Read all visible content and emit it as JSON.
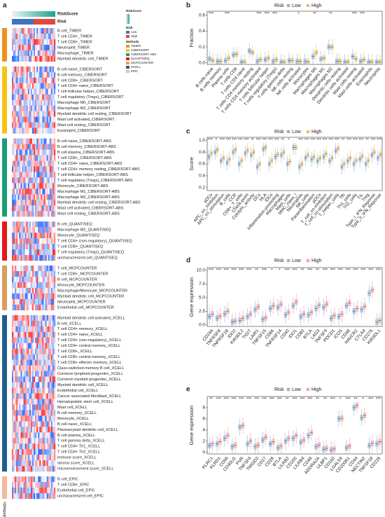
{
  "heatmap": {
    "panel_label": "a",
    "riskscore_label": "RiskScore",
    "risk_label": "Risk",
    "risk_low": "Low",
    "risk_high": "High",
    "methods_label": "Methods",
    "groups": [
      {
        "method": "TIMER",
        "color": "#f0901e",
        "rows": [
          "B cell_TIMER",
          "T cell CD4+_TIMER",
          "T cell CD8+_TIMER",
          "Neutrophil_TIMER",
          "Macrophage_TIMER",
          "Myeloid dendritic cell_TIMER"
        ]
      },
      {
        "method": "CIBERSORT",
        "color": "#f5c518",
        "rows": [
          "B cell naive_CIBERSORT",
          "B cell memory_CIBERSORT",
          "T cell CD8+_CIBERSORT",
          "T cell CD4+ naive_CIBERSORT",
          "T cell follicular helper_CIBERSORT",
          "T cell regulatory (Tregs)_CIBERSORT",
          "Macrophage M0_CIBERSORT",
          "Macrophage M2_CIBERSORT",
          "Myeloid dendritic cell resting_CIBERSORT",
          "Mast cell activated_CIBERSORT",
          "Mast cell resting_CIBERSORT",
          "Eosinophil_CIBERSORT"
        ]
      },
      {
        "method": "CIBERSORT-ABS",
        "color": "#1a9e77",
        "rows": [
          "B cell naive_CIBERSORT-ABS",
          "B cell memory_CIBERSORT-ABS",
          "B cell plasma_CIBERSORT-ABS",
          "T cell CD8+_CIBERSORT-ABS",
          "T cell CD4+ naive_CIBERSORT-ABS",
          "T cell CD4+ memory resting_CIBERSORT-ABS",
          "T cell follicular helper_CIBERSORT-ABS",
          "T cell regulatory (Tregs)_CIBERSORT-ABS",
          "Monocyte_CIBERSORT-ABS",
          "Macrophage M1_CIBERSORT-ABS",
          "Macrophage M2_CIBERSORT-ABS",
          "Myeloid dendritic cell resting_CIBERSORT-ABS",
          "Mast cell activated_CIBERSORT-ABS",
          "Mast cell resting_CIBERSORT-ABS"
        ]
      },
      {
        "method": "QUANTISEQ",
        "color": "#e41a1c",
        "rows": [
          "B cell_QUANTISEQ",
          "Macrophage M2_QUANTISEQ",
          "Monocyte_QUANTISEQ",
          "T cell CD4+ (non-regulatory)_QUANTISEQ",
          "T cell CD8+_QUANTISEQ",
          "T cell regulatory (Tregs)_QUANTISEQ",
          "uncharacterized cell_QUANTISEQ"
        ]
      },
      {
        "method": "MCPCOUNTER",
        "color": "#d9a05b",
        "rows": [
          "T cell_MCPCOUNTER",
          "T cell CD8+_MCPCOUNTER",
          "B cell_MCPCOUNTER",
          "Monocyte_MCPCOUNTER",
          "Macrophage/Monocyte_MCPCOUNTER",
          "Myeloid dendritic cell_MCPCOUNTER",
          "Neutrophil_MCPCOUNTER",
          "Endothelial cell_MCPCOUNTER"
        ]
      },
      {
        "method": "XCELL",
        "color": "#1f5f8b",
        "rows": [
          "Myeloid dendritic cell activated_XCELL",
          "B cell_XCELL",
          "T cell CD4+ memory_XCELL",
          "T cell CD4+ naive_XCELL",
          "T cell CD4+ (non-regulatory)_XCELL",
          "T cell CD4+ central memory_XCELL",
          "T cell CD8+_XCELL",
          "T cell CD8+ central memory_XCELL",
          "T cell CD8+ effector memory_XCELL",
          "Class-switched memory B cell_XCELL",
          "Common lymphoid progenitor_XCELL",
          "Common myeloid progenitor_XCELL",
          "Myeloid dendritic cell_XCELL",
          "Endothelial cell_XCELL",
          "Cancer associated fibroblast_XCELL",
          "Hematopoietic stem cell_XCELL",
          "Mast cell_XCELL",
          "B cell memory_XCELL",
          "Monocyte_XCELL",
          "B cell naive_XCELL",
          "Plasmacytoid dendritic cell_XCELL",
          "B cell plasma_XCELL",
          "T cell gamma delta_XCELL",
          "T cell CD4+ Th1_XCELL",
          "T cell CD4+ Th2_XCELL",
          "immune score_XCELL",
          "stroma score_XCELL",
          "microenvironment score_XCELL"
        ]
      },
      {
        "method": "EPIC",
        "color": "#f4b9a0",
        "rows": [
          "B cell_EPIC",
          "T cell CD8+_EPIC",
          "Endothelial cell_EPIC",
          "uncharacterized cell_EPIC"
        ]
      }
    ]
  },
  "chart_data": [
    {
      "type": "box",
      "panel_label": "b",
      "y_label": "Fraction",
      "legend_title": "Risk",
      "categories": [
        "B cells naive",
        "B cells memory",
        "Plasma cells",
        "T cells CD8",
        "T cells CD4 naive",
        "T cells CD4 memory resting",
        "T cells CD4 memory activated",
        "T cells follicular helper",
        "T cells regulatory (Tregs)",
        "T cells gamma delta",
        "NK cells resting",
        "NK cells activated",
        "Monocytes",
        "Macrophages M0",
        "Macrophages M1",
        "Macrophages M2",
        "Dendritic cells resting",
        "Dendritic cells activated",
        "Mast cells resting",
        "Mast cells activated",
        "Eosinophils",
        "Neutrophils"
      ],
      "series": [
        {
          "name": "Low",
          "color": "#8fb3d9",
          "values": [
            0.05,
            0.02,
            0.03,
            0.1,
            0.01,
            0.15,
            0.02,
            0.04,
            0.02,
            0.01,
            0.03,
            0.02,
            0.02,
            0.08,
            0.05,
            0.2,
            0.02,
            0.01,
            0.08,
            0.02,
            0.01,
            0.01
          ]
        },
        {
          "name": "High",
          "color": "#e8c07a",
          "values": [
            0.03,
            0.02,
            0.06,
            0.11,
            0.01,
            0.13,
            0.04,
            0.06,
            0.04,
            0.01,
            0.03,
            0.02,
            0.01,
            0.13,
            0.06,
            0.2,
            0.02,
            0.01,
            0.05,
            0.04,
            0.01,
            0.01
          ]
        }
      ],
      "significance": [
        "***",
        null,
        "***",
        null,
        null,
        null,
        "***",
        "***",
        "***",
        null,
        null,
        "*",
        null,
        "**",
        null,
        "**",
        null,
        null,
        "***",
        "***",
        null,
        null
      ],
      "ylim": [
        -0.02,
        0.65
      ],
      "yticks": [
        {
          "value": 0,
          "label": "0.0"
        },
        {
          "value": 0.2,
          "label": "0.2"
        },
        {
          "value": 0.4,
          "label": "0.4"
        },
        {
          "value": 0.6,
          "label": "0.6"
        }
      ]
    },
    {
      "type": "box",
      "panel_label": "c",
      "y_label": "Score",
      "legend_title": "Risk",
      "categories": [
        "aDCs",
        "APC_co_inhibition",
        "APC_co_stimulation",
        "B_cells",
        "CCR",
        "CD8+_T_cells",
        "Check-point",
        "Cytolytic_activity",
        "DCs",
        "HLA",
        "iDCs",
        "Inflammation-promoting",
        "Macrophages",
        "Mast_cells",
        "MHC_class_I",
        "Neutrophils",
        "NK_cells",
        "Parainflammation",
        "pDCs",
        "T_cell_co-inhibition",
        "T_cell_co-stimulation",
        "T_helper_cells",
        "Tfh",
        "Th1_cells",
        "Th2_cells",
        "TIL",
        "Treg",
        "Type_I_IFN_Reponse",
        "Type_II_IFN_Reponse"
      ],
      "series": [
        {
          "name": "Low",
          "color": "#8fb3d9",
          "values": [
            0.72,
            0.8,
            0.65,
            0.62,
            0.8,
            0.6,
            0.78,
            0.75,
            0.55,
            0.85,
            0.6,
            0.72,
            0.75,
            0.6,
            0.88,
            0.55,
            0.7,
            0.68,
            0.65,
            0.72,
            0.65,
            0.82,
            0.55,
            0.65,
            0.6,
            0.68,
            0.6,
            0.75,
            0.7
          ]
        },
        {
          "name": "High",
          "color": "#e8c07a",
          "values": [
            0.78,
            0.84,
            0.7,
            0.68,
            0.84,
            0.66,
            0.83,
            0.8,
            0.6,
            0.88,
            0.66,
            0.76,
            0.8,
            0.64,
            0.88,
            0.6,
            0.75,
            0.72,
            0.7,
            0.77,
            0.7,
            0.86,
            0.6,
            0.7,
            0.66,
            0.73,
            0.66,
            0.8,
            0.76
          ]
        }
      ],
      "significance": [
        "***",
        "*",
        "***",
        "***",
        "***",
        "***",
        "***",
        "**",
        "***",
        "***",
        "***",
        "***",
        "**",
        "*",
        null,
        "***",
        "***",
        "***",
        "***",
        "***",
        "***",
        "***",
        "**",
        "***",
        "***",
        "***",
        "**",
        "***",
        "***"
      ],
      "ylim": [
        0.15,
        1.05
      ],
      "yticks": [
        0.2,
        0.4,
        0.6,
        0.8,
        {
          "value": 1,
          "label": "1.0"
        }
      ]
    },
    {
      "type": "box",
      "panel_label": "d",
      "y_label": "Gene expression",
      "legend_title": "Risk",
      "categories": [
        "CD244",
        "TNFRSF8",
        "TNFRSF18",
        "IDO2",
        "KIR3DL2",
        "TIGIT",
        "LAIR1",
        "TNFSF15",
        "CD86",
        "TNFRSF14",
        "CD40",
        "IDO1",
        "CD80",
        "BTLA",
        "LAG3",
        "TNFSF9",
        "PDCD1",
        "ICOS",
        "CD48",
        "HAVCR2",
        "CTLA4",
        "CD276",
        "KIR3DL1"
      ],
      "series": [
        {
          "name": "Low",
          "color": "#8fb3d9",
          "values": [
            1.5,
            1.2,
            2.0,
            0.5,
            0.8,
            1.5,
            2.8,
            1.0,
            3.0,
            3.2,
            1.8,
            3.5,
            1.5,
            1.8,
            3.0,
            3.2,
            1.2,
            1.5,
            3.5,
            2.5,
            2.8,
            5.8,
            0.5
          ]
        },
        {
          "name": "High",
          "color": "#f4a6a6",
          "values": [
            2.0,
            1.6,
            2.5,
            0.7,
            1.2,
            2.0,
            3.3,
            1.3,
            3.5,
            3.8,
            2.3,
            4.2,
            2.0,
            2.3,
            3.6,
            3.8,
            1.7,
            2.0,
            4.0,
            3.0,
            3.4,
            6.4,
            0.8
          ]
        }
      ],
      "significance": [
        "***",
        "***",
        "***",
        "***",
        "***",
        "***",
        "**",
        "***",
        "*",
        "*",
        "***",
        "***",
        "**",
        "***",
        "**",
        "***",
        "***",
        "***",
        "***",
        "***",
        "***",
        "***",
        "***"
      ],
      "ylim": [
        -0.3,
        10.5
      ],
      "yticks": [
        {
          "value": 0,
          "label": "0.0"
        },
        2.5,
        {
          "value": 5,
          "label": "5.0"
        },
        7.5,
        {
          "value": 10,
          "label": "10.0"
        }
      ]
    },
    {
      "type": "box",
      "panel_label": "e",
      "y_label": "Gene expression",
      "legend_title": "Risk",
      "categories": [
        "KLRC1",
        "KLRD1",
        "CD96",
        "CD40LG",
        "PVR",
        "TNFSF4",
        "TMIGD2",
        "CD27",
        "CD28",
        "BTLA",
        "LILRB2",
        "CD200",
        "LILRB4",
        "CD48",
        "ADORA2A",
        "ULBP1",
        "CD160",
        "LGALS9",
        "CD200R1",
        "CD44",
        "NECTIN2",
        "TNFSF18",
        "CD226"
      ],
      "series": [
        {
          "name": "Low",
          "color": "#8fb3d9",
          "values": [
            1.2,
            1.5,
            2.5,
            1.0,
            4.5,
            1.5,
            1.0,
            2.2,
            1.5,
            0.8,
            2.0,
            2.5,
            1.8,
            3.0,
            1.0,
            0.5,
            0.4,
            6.0,
            0.8,
            8.0,
            6.2,
            1.2,
            1.5
          ]
        },
        {
          "name": "High",
          "color": "#f4a6a6",
          "values": [
            1.5,
            1.9,
            3.0,
            1.3,
            4.8,
            2.0,
            1.3,
            2.7,
            1.9,
            1.1,
            2.5,
            3.0,
            2.2,
            3.5,
            1.3,
            0.7,
            0.6,
            6.1,
            1.1,
            8.4,
            6.6,
            1.6,
            1.9
          ]
        }
      ],
      "significance": [
        "**",
        "***",
        "***",
        "***",
        "***",
        "***",
        "***",
        "***",
        "***",
        "***",
        "**",
        "***",
        "***",
        "***",
        "**",
        "**",
        "***",
        "*",
        "***",
        "**",
        "*",
        "***",
        "***"
      ],
      "ylim": [
        -0.3,
        10
      ],
      "yticks": [
        0,
        2,
        4,
        6,
        8
      ]
    }
  ]
}
